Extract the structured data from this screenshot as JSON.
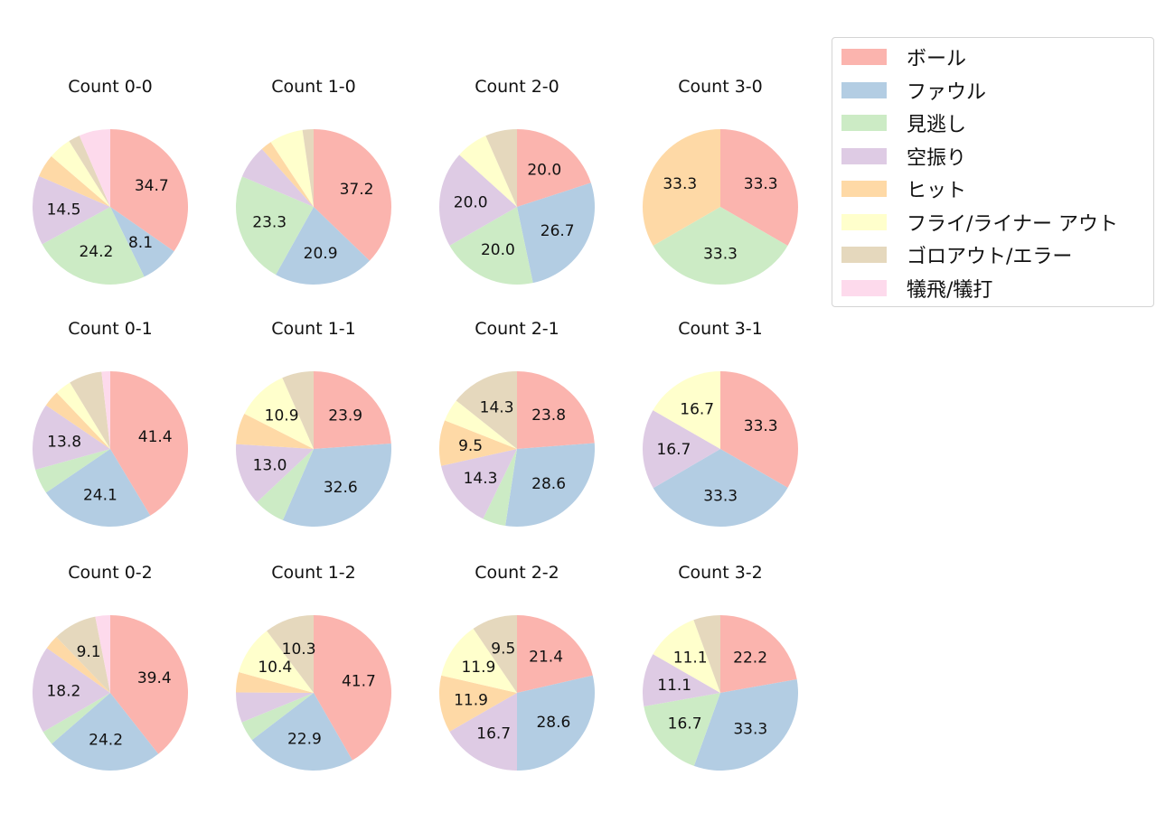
{
  "chart_data": {
    "type": "pie",
    "categories": [
      "ボール",
      "ファウル",
      "見逃し",
      "空振り",
      "ヒット",
      "フライ/ライナー アウト",
      "ゴロアウト/エラー",
      "犠飛/犠打"
    ],
    "colors": [
      "#fbb4ae",
      "#b3cde3",
      "#ccebc5",
      "#decbe4",
      "#fed9a6",
      "#ffffcc",
      "#e5d8bd",
      "#fddaec"
    ],
    "label_min_pct": 8,
    "charts": [
      {
        "title": "Count 0-0",
        "values": [
          34.7,
          8.1,
          24.2,
          14.5,
          4.8,
          4.8,
          2.4,
          6.5
        ]
      },
      {
        "title": "Count 1-0",
        "values": [
          37.2,
          20.9,
          23.3,
          7.0,
          2.3,
          7.0,
          2.3,
          0
        ]
      },
      {
        "title": "Count 2-0",
        "values": [
          20.0,
          26.7,
          20.0,
          20.0,
          0,
          6.7,
          6.6,
          0
        ]
      },
      {
        "title": "Count 3-0",
        "values": [
          33.3,
          0,
          33.3,
          0,
          33.3,
          0,
          0,
          0
        ]
      },
      {
        "title": "Count 0-1",
        "values": [
          41.4,
          24.1,
          5.2,
          13.8,
          3.4,
          3.4,
          6.9,
          1.8
        ]
      },
      {
        "title": "Count 1-1",
        "values": [
          23.9,
          32.6,
          6.5,
          13.0,
          6.5,
          10.9,
          6.6,
          0
        ]
      },
      {
        "title": "Count 2-1",
        "values": [
          23.8,
          28.6,
          4.8,
          14.3,
          9.5,
          4.7,
          14.3,
          0
        ]
      },
      {
        "title": "Count 3-1",
        "values": [
          33.3,
          33.3,
          0,
          16.7,
          0,
          16.7,
          0,
          0
        ]
      },
      {
        "title": "Count 0-2",
        "values": [
          39.4,
          24.2,
          3.0,
          18.2,
          3.0,
          0,
          9.1,
          3.1
        ]
      },
      {
        "title": "Count 1-2",
        "values": [
          41.7,
          22.9,
          4.2,
          6.3,
          4.2,
          10.4,
          10.3,
          0
        ]
      },
      {
        "title": "Count 2-2",
        "values": [
          21.4,
          28.6,
          0,
          16.7,
          11.9,
          11.9,
          9.5,
          0
        ]
      },
      {
        "title": "Count 3-2",
        "values": [
          22.2,
          33.3,
          16.7,
          11.1,
          0,
          11.1,
          5.6,
          0
        ]
      }
    ]
  }
}
